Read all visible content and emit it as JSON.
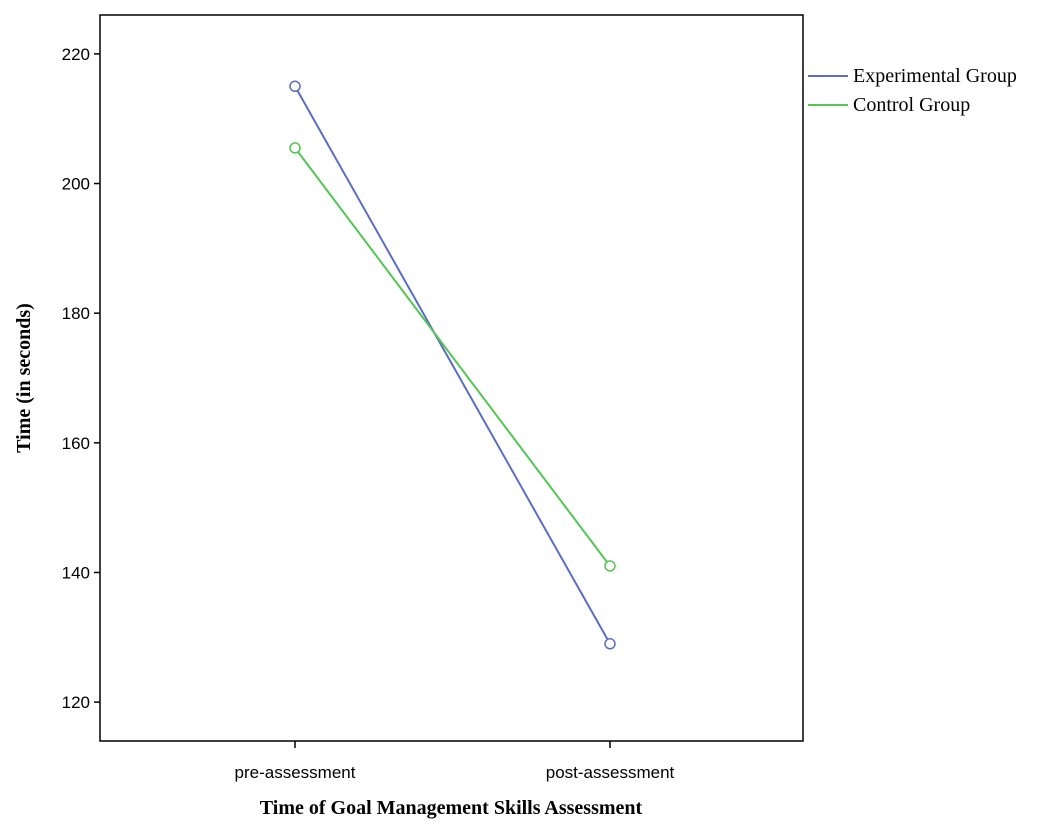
{
  "chart_data": {
    "type": "line",
    "xlabel": "Time of Goal Management Skills Assessment",
    "ylabel": "Time (in seconds)",
    "categories": [
      "pre-assessment",
      "post-assessment"
    ],
    "ylim": [
      114,
      226
    ],
    "yticks": [
      120,
      140,
      160,
      180,
      200,
      220
    ],
    "grid": false,
    "legend_position": "right",
    "series": [
      {
        "name": "Experimental Group",
        "values": [
          215,
          129
        ],
        "color": "#5a6ec4",
        "marker": "circle"
      },
      {
        "name": "Control Group",
        "values": [
          205.5,
          141
        ],
        "color": "#53c653",
        "marker": "circle"
      }
    ]
  }
}
